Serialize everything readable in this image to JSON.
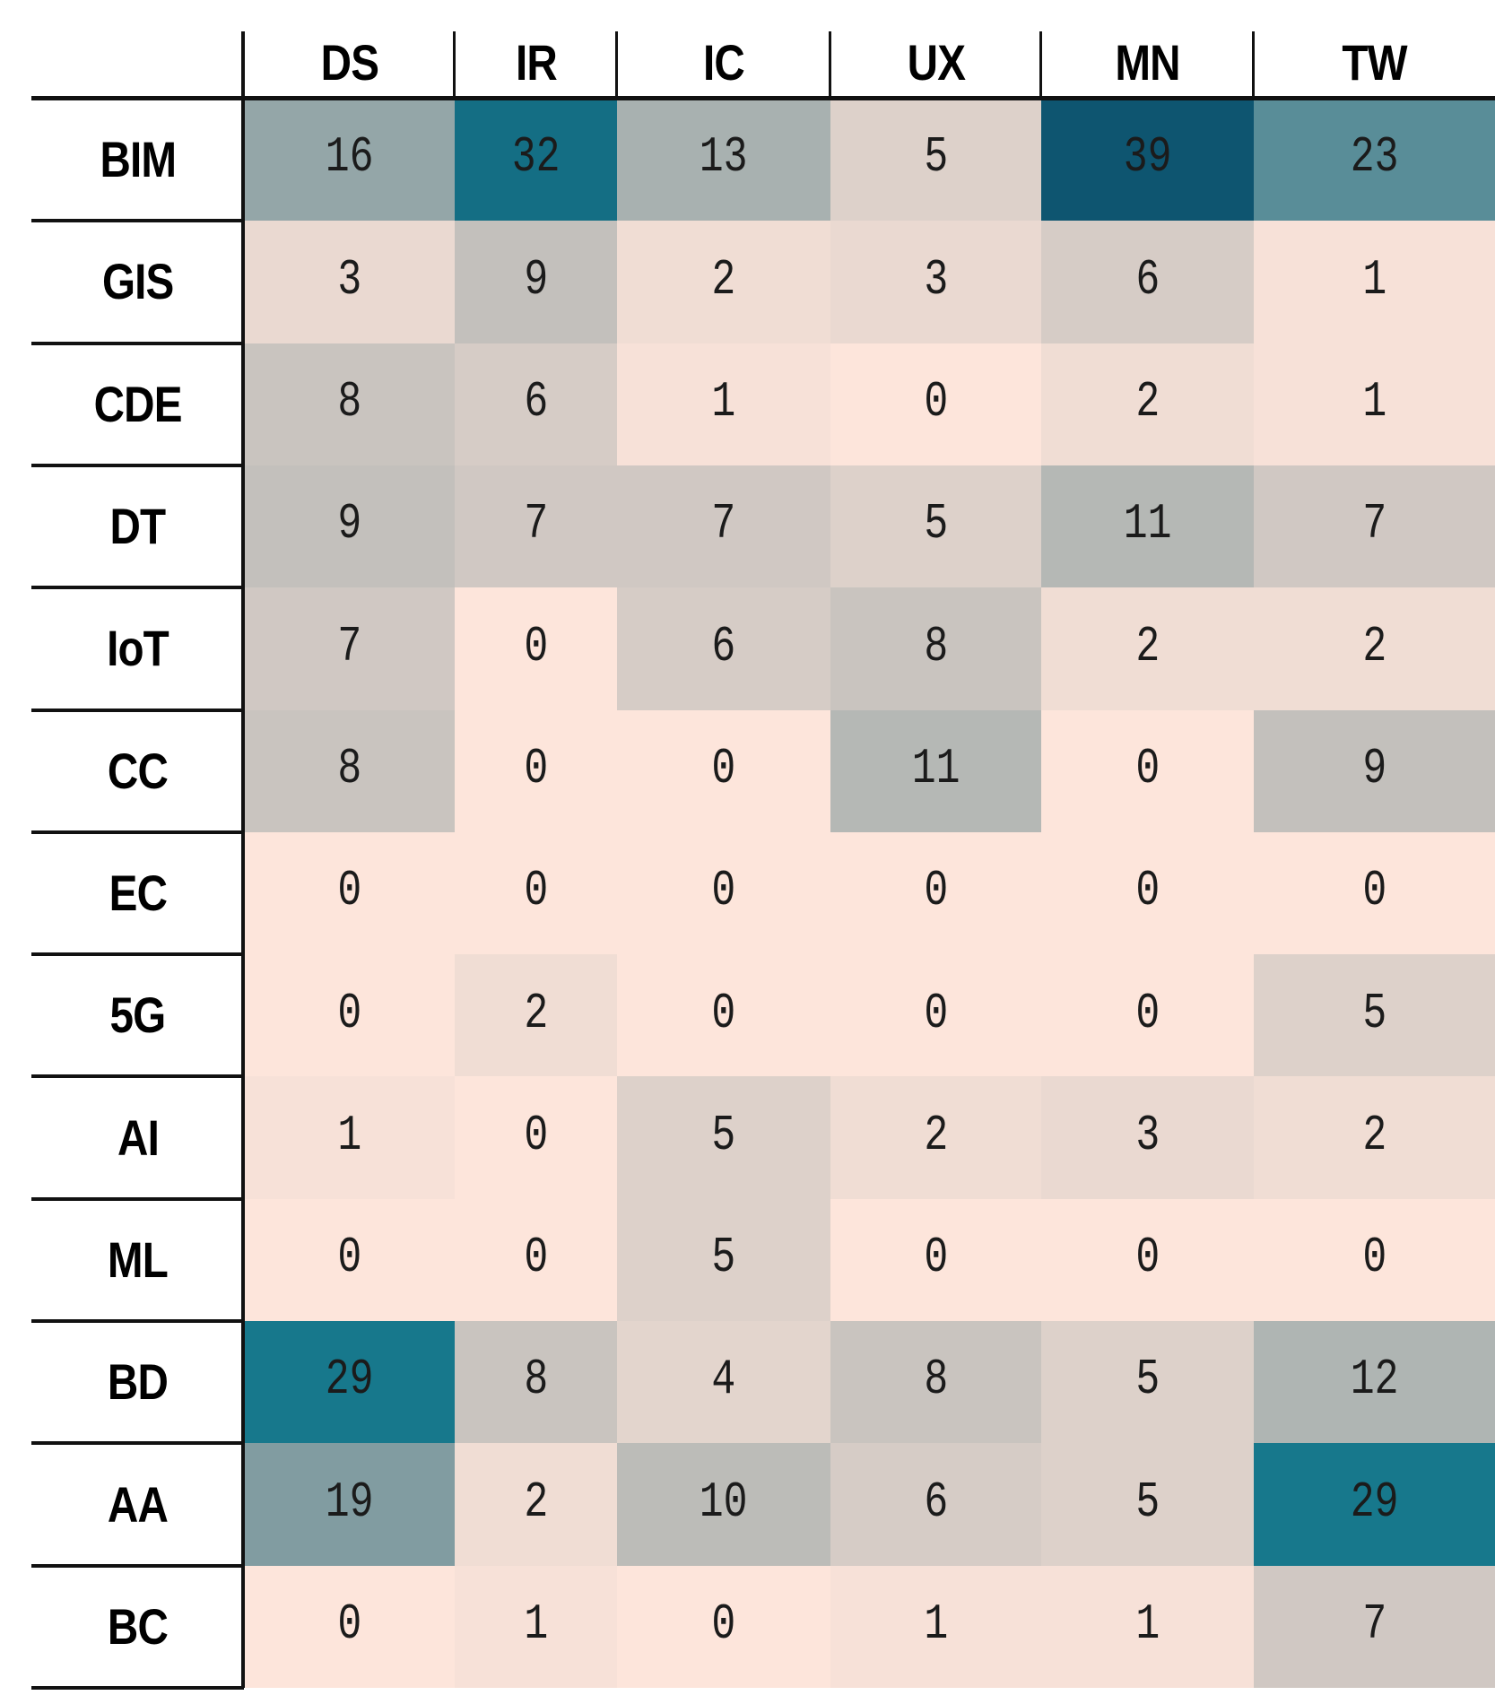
{
  "chart_data": {
    "type": "heatmap",
    "title": "",
    "columns": [
      "DS",
      "IR",
      "IC",
      "UX",
      "MN",
      "TW"
    ],
    "rows": [
      "BIM",
      "GIS",
      "CDE",
      "DT",
      "IoT",
      "CC",
      "EC",
      "5G",
      "AI",
      "ML",
      "BD",
      "AA",
      "BC"
    ],
    "values": [
      [
        16,
        32,
        13,
        5,
        39,
        23
      ],
      [
        3,
        9,
        2,
        3,
        6,
        1
      ],
      [
        8,
        6,
        1,
        0,
        2,
        1
      ],
      [
        9,
        7,
        7,
        5,
        11,
        7
      ],
      [
        7,
        0,
        6,
        8,
        2,
        2
      ],
      [
        8,
        0,
        0,
        11,
        0,
        9
      ],
      [
        0,
        0,
        0,
        0,
        0,
        0
      ],
      [
        0,
        2,
        0,
        0,
        0,
        5
      ],
      [
        1,
        0,
        5,
        2,
        3,
        2
      ],
      [
        0,
        0,
        5,
        0,
        0,
        0
      ],
      [
        29,
        8,
        4,
        8,
        5,
        12
      ],
      [
        19,
        2,
        10,
        6,
        5,
        29
      ],
      [
        0,
        1,
        0,
        1,
        1,
        7
      ]
    ],
    "value_range": [
      0,
      39
    ],
    "colormap_stops": [
      {
        "value": 0,
        "color": "#fde5db"
      },
      {
        "value": 10,
        "color": "#bcbcb8"
      },
      {
        "value": 20,
        "color": "#7a989e"
      },
      {
        "value": 29,
        "color": "#17788c"
      },
      {
        "value": 39,
        "color": "#0e5570"
      }
    ],
    "grid_color": "#111111",
    "text_color": "#1b1b1b",
    "legend": "none"
  }
}
